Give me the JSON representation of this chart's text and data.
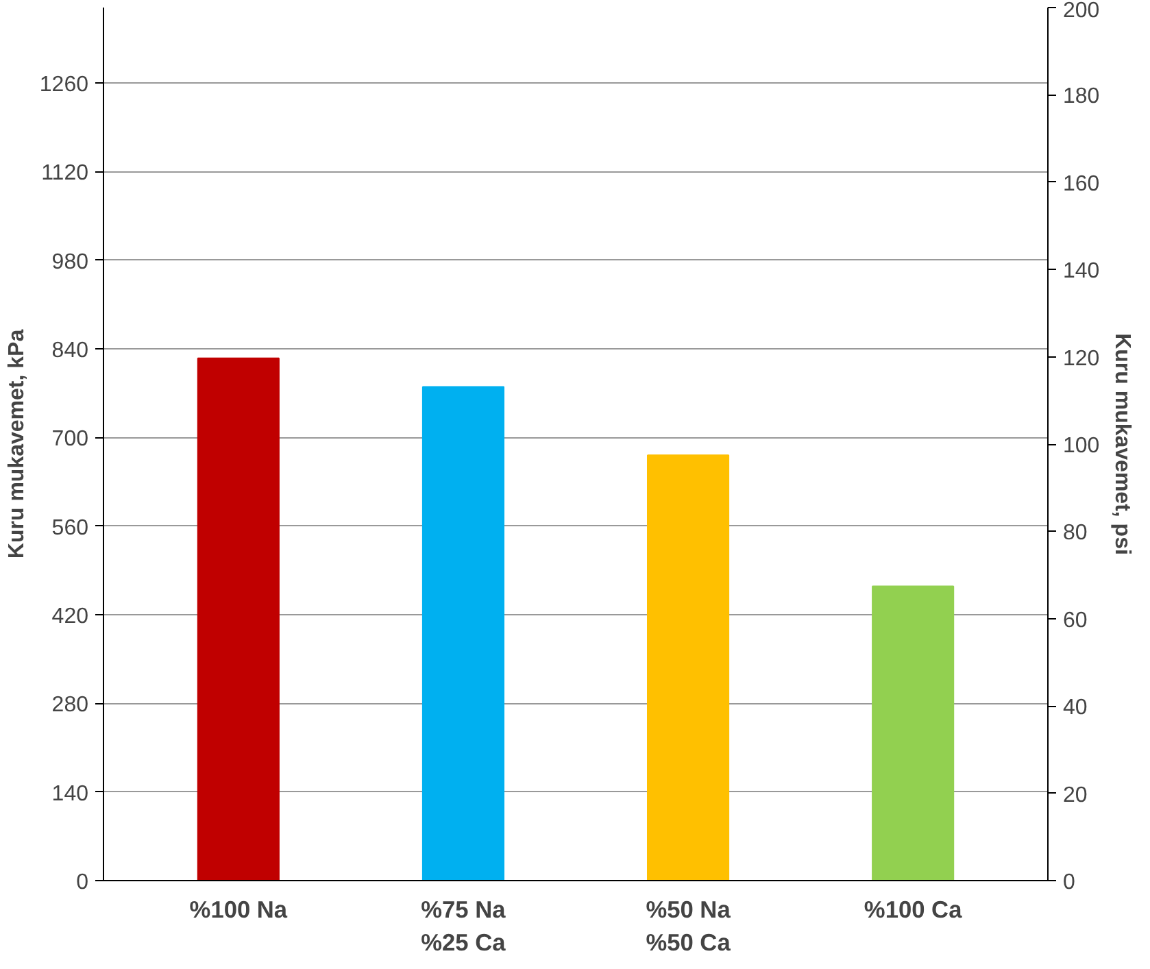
{
  "chart_data": {
    "type": "bar",
    "ylabel": "Kuru mukavemet, kPa",
    "y2label": "Kuru mukavemet, psi",
    "categories": [
      "%100 Na",
      "%75 Na\n%25 Ca",
      "%50 Na\n%50 Ca",
      "%100 Ca"
    ],
    "values": [
      825,
      780,
      672,
      465
    ],
    "colors": [
      "#c00000",
      "#00b0f0",
      "#ffc000",
      "#92d050"
    ],
    "ylim": [
      0,
      1379
    ],
    "yticks": [
      0,
      140,
      280,
      420,
      560,
      700,
      840,
      980,
      1120,
      1260
    ],
    "y2lim": [
      0,
      200
    ],
    "y2ticks": [
      0,
      20,
      40,
      60,
      80,
      100,
      120,
      140,
      160,
      180,
      200
    ],
    "grid": "y"
  }
}
